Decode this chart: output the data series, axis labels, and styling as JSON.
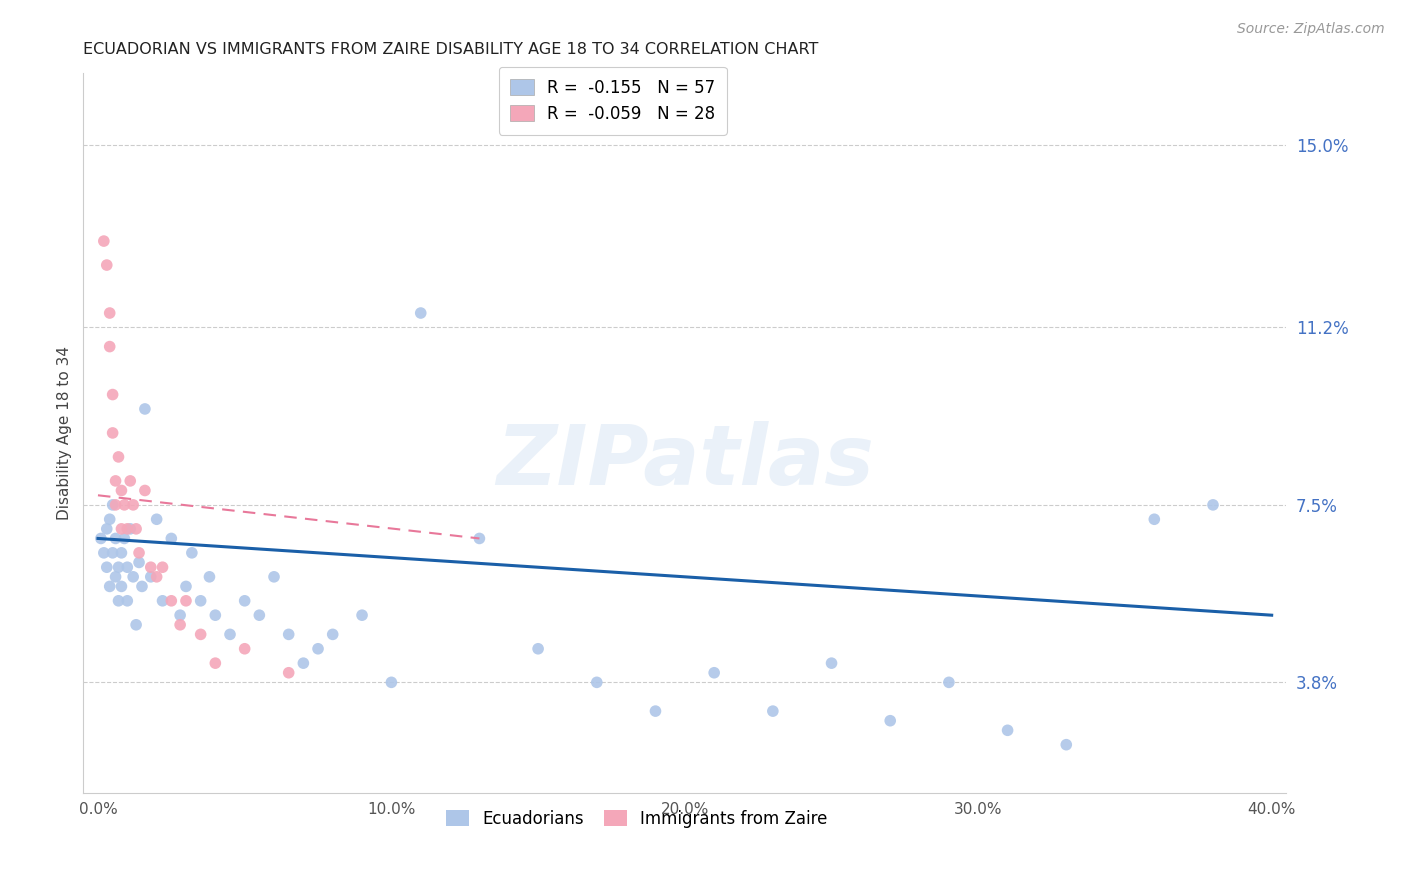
{
  "title": "ECUADORIAN VS IMMIGRANTS FROM ZAIRE DISABILITY AGE 18 TO 34 CORRELATION CHART",
  "source": "Source: ZipAtlas.com",
  "ylabel": "Disability Age 18 to 34",
  "xlabel_ticks": [
    "0.0%",
    "10.0%",
    "20.0%",
    "30.0%",
    "40.0%"
  ],
  "xlabel_vals": [
    0.0,
    0.1,
    0.2,
    0.3,
    0.4
  ],
  "right_yticks_labels": [
    "15.0%",
    "11.2%",
    "7.5%",
    "3.8%"
  ],
  "right_yticks_vals": [
    0.15,
    0.112,
    0.075,
    0.038
  ],
  "xlim": [
    -0.005,
    0.405
  ],
  "ylim": [
    0.015,
    0.165
  ],
  "legend": [
    {
      "label": "R =  -0.155   N = 57",
      "color": "#aec6e8"
    },
    {
      "label": "R =  -0.059   N = 28",
      "color": "#f4a7b9"
    }
  ],
  "legend_labels": [
    "Ecuadorians",
    "Immigrants from Zaire"
  ],
  "blue_scatter_x": [
    0.001,
    0.002,
    0.003,
    0.003,
    0.004,
    0.004,
    0.005,
    0.005,
    0.006,
    0.006,
    0.007,
    0.007,
    0.008,
    0.008,
    0.009,
    0.01,
    0.01,
    0.011,
    0.012,
    0.013,
    0.014,
    0.015,
    0.016,
    0.018,
    0.02,
    0.022,
    0.025,
    0.028,
    0.03,
    0.032,
    0.035,
    0.038,
    0.04,
    0.045,
    0.05,
    0.055,
    0.06,
    0.065,
    0.07,
    0.075,
    0.08,
    0.09,
    0.1,
    0.11,
    0.13,
    0.15,
    0.17,
    0.19,
    0.21,
    0.23,
    0.25,
    0.27,
    0.29,
    0.31,
    0.33,
    0.36,
    0.38
  ],
  "blue_scatter_y": [
    0.068,
    0.065,
    0.07,
    0.062,
    0.072,
    0.058,
    0.065,
    0.075,
    0.06,
    0.068,
    0.055,
    0.062,
    0.058,
    0.065,
    0.068,
    0.055,
    0.062,
    0.07,
    0.06,
    0.05,
    0.063,
    0.058,
    0.095,
    0.06,
    0.072,
    0.055,
    0.068,
    0.052,
    0.058,
    0.065,
    0.055,
    0.06,
    0.052,
    0.048,
    0.055,
    0.052,
    0.06,
    0.048,
    0.042,
    0.045,
    0.048,
    0.052,
    0.038,
    0.115,
    0.068,
    0.045,
    0.038,
    0.032,
    0.04,
    0.032,
    0.042,
    0.03,
    0.038,
    0.028,
    0.025,
    0.072,
    0.075
  ],
  "pink_scatter_x": [
    0.002,
    0.003,
    0.004,
    0.004,
    0.005,
    0.005,
    0.006,
    0.006,
    0.007,
    0.008,
    0.008,
    0.009,
    0.01,
    0.011,
    0.012,
    0.013,
    0.014,
    0.016,
    0.018,
    0.02,
    0.022,
    0.025,
    0.028,
    0.03,
    0.035,
    0.04,
    0.05,
    0.065
  ],
  "pink_scatter_y": [
    0.13,
    0.125,
    0.115,
    0.108,
    0.098,
    0.09,
    0.08,
    0.075,
    0.085,
    0.07,
    0.078,
    0.075,
    0.07,
    0.08,
    0.075,
    0.07,
    0.065,
    0.078,
    0.062,
    0.06,
    0.062,
    0.055,
    0.05,
    0.055,
    0.048,
    0.042,
    0.045,
    0.04
  ],
  "blue_line_x": [
    0.0,
    0.4
  ],
  "blue_line_y": [
    0.068,
    0.052
  ],
  "pink_line_x": [
    0.0,
    0.13
  ],
  "pink_line_y": [
    0.077,
    0.068
  ],
  "dot_color_blue": "#aec6e8",
  "dot_color_pink": "#f4a7b9",
  "line_color_blue": "#1a5fa8",
  "line_color_pink": "#e8789a",
  "background_color": "#ffffff",
  "grid_color": "#cccccc",
  "title_color": "#222222",
  "right_axis_color": "#4472c4",
  "watermark": "ZIPatlas",
  "dot_size": 70
}
